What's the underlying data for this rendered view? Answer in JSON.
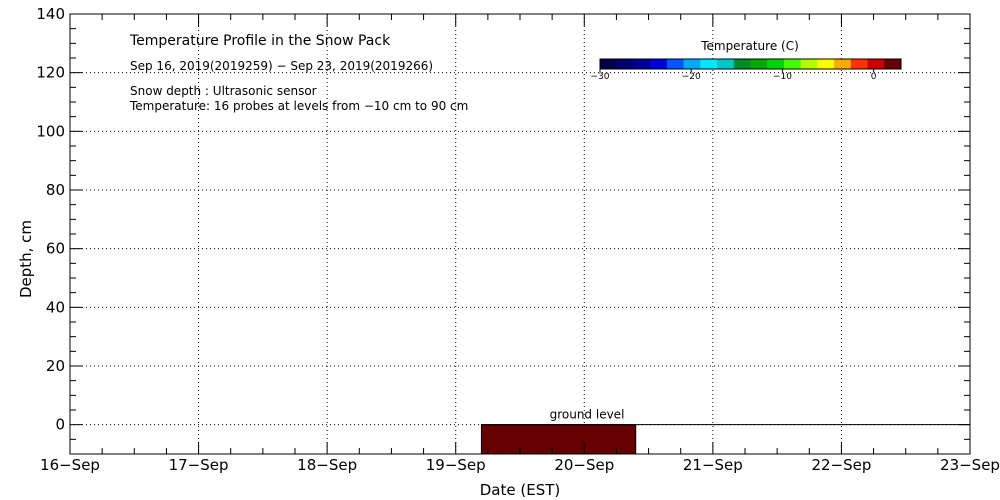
{
  "chart_data": {
    "type": "heatmap",
    "title": "Temperature Profile in the Snow Pack",
    "subtitle": "Sep 16, 2019(2019259) − Sep 23, 2019(2019266)",
    "annotations": [
      "Snow depth : Ultrasonic sensor",
      "Temperature: 16 probes at levels from −10 cm to 90 cm"
    ],
    "xlabel": "Date (EST)",
    "ylabel": "Depth, cm",
    "x_tick_labels": [
      "16−Sep",
      "17−Sep",
      "18−Sep",
      "19−Sep",
      "20−Sep",
      "21−Sep",
      "22−Sep",
      "23−Sep"
    ],
    "xlim_days": [
      0,
      7
    ],
    "y_ticks": [
      0,
      20,
      40,
      60,
      80,
      100,
      120,
      140
    ],
    "ylim": [
      -10,
      140
    ],
    "grid": true,
    "grid_style": "dotted",
    "ground_label": "ground level",
    "ground_level": 0,
    "ground_line_start_day": 3.2,
    "temperature_cells": [
      {
        "x_start_day": 3.2,
        "x_end_day": 4.4,
        "depth_from": -10,
        "depth_to": 0,
        "temperature_c": 3
      }
    ],
    "colorbar": {
      "title": "Temperature (C)",
      "range": [
        -30,
        3
      ],
      "tick_values": [
        -30,
        -20,
        -10,
        0
      ],
      "tick_labels": [
        "−30",
        "−20",
        "−10",
        "0"
      ],
      "colors": [
        "#00004a",
        "#000070",
        "#000098",
        "#0000d8",
        "#0055ff",
        "#00aaff",
        "#00e8ff",
        "#00c8c8",
        "#008c28",
        "#00aa00",
        "#00d400",
        "#44ff00",
        "#b4ff00",
        "#ffff00",
        "#ffaa00",
        "#ff3300",
        "#cc0000",
        "#650000"
      ]
    },
    "colors": {
      "cell": "#650000",
      "line": "#000000",
      "grid": "#000000"
    }
  }
}
